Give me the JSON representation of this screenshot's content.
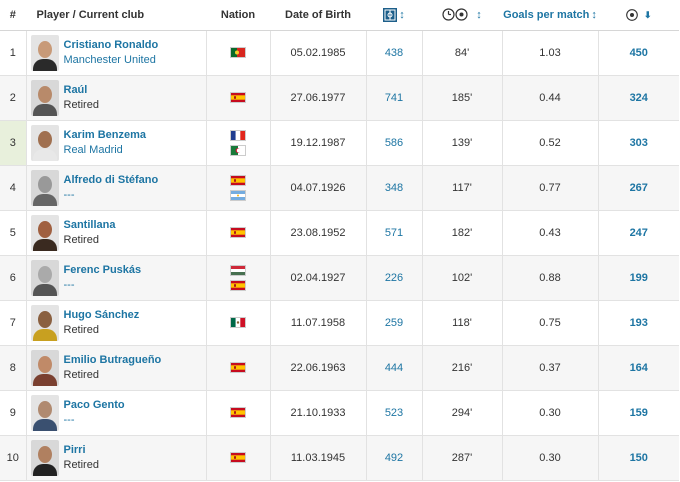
{
  "header": {
    "rank": "#",
    "player": "Player / Current club",
    "nation": "Nation",
    "dob": "Date of Birth",
    "apps_icon": "appearances-icon",
    "minutes_icon": "minutes-per-goal-icon",
    "gpm": "Goals per match",
    "goals_icon": "goals-icon",
    "sort_arrow": "↕",
    "sort_down": "⬇"
  },
  "rows": [
    {
      "rank": "1",
      "name": "Cristiano Ronaldo",
      "club": "Manchester United",
      "club_link": true,
      "flags": [
        "portugal"
      ],
      "dob": "05.02.1985",
      "apps": "438",
      "mpg": "84'",
      "gpm": "1.03",
      "goals": "450",
      "skin": "#c89a78",
      "kit": "#2a2a2a"
    },
    {
      "rank": "2",
      "name": "Raúl",
      "club": "Retired",
      "club_link": false,
      "flags": [
        "spain"
      ],
      "dob": "27.06.1977",
      "apps": "741",
      "mpg": "185'",
      "gpm": "0.44",
      "goals": "324",
      "skin": "#b88a6a",
      "kit": "#555"
    },
    {
      "rank": "3",
      "name": "Karim Benzema",
      "club": "Real Madrid",
      "club_link": true,
      "flags": [
        "france",
        "algeria"
      ],
      "dob": "19.12.1987",
      "apps": "586",
      "mpg": "139'",
      "gpm": "0.52",
      "goals": "303",
      "skin": "#a07050",
      "kit": "#e8e8e8"
    },
    {
      "rank": "4",
      "name": "Alfredo di Stéfano",
      "club": "---",
      "club_link": true,
      "flags": [
        "spain",
        "argentina"
      ],
      "dob": "04.07.1926",
      "apps": "348",
      "mpg": "117'",
      "gpm": "0.77",
      "goals": "267",
      "skin": "#999",
      "kit": "#666"
    },
    {
      "rank": "5",
      "name": "Santillana",
      "club": "Retired",
      "club_link": false,
      "flags": [
        "spain"
      ],
      "dob": "23.08.1952",
      "apps": "571",
      "mpg": "182'",
      "gpm": "0.43",
      "goals": "247",
      "skin": "#a06040",
      "kit": "#3a2a20"
    },
    {
      "rank": "6",
      "name": "Ferenc Puskás",
      "club": "---",
      "club_link": true,
      "flags": [
        "hungary",
        "spain"
      ],
      "dob": "02.04.1927",
      "apps": "226",
      "mpg": "102'",
      "gpm": "0.88",
      "goals": "199",
      "skin": "#aaa",
      "kit": "#555"
    },
    {
      "rank": "7",
      "name": "Hugo Sánchez",
      "club": "Retired",
      "club_link": false,
      "flags": [
        "mexico"
      ],
      "dob": "11.07.1958",
      "apps": "259",
      "mpg": "118'",
      "gpm": "0.75",
      "goals": "193",
      "skin": "#8a6040",
      "kit": "#c8a020"
    },
    {
      "rank": "8",
      "name": "Emilio Butragueño",
      "club": "Retired",
      "club_link": false,
      "flags": [
        "spain"
      ],
      "dob": "22.06.1963",
      "apps": "444",
      "mpg": "216'",
      "gpm": "0.37",
      "goals": "164",
      "skin": "#c08a68",
      "kit": "#7a4030"
    },
    {
      "rank": "9",
      "name": "Paco Gento",
      "club": "---",
      "club_link": true,
      "flags": [
        "spain"
      ],
      "dob": "21.10.1933",
      "apps": "523",
      "mpg": "294'",
      "gpm": "0.30",
      "goals": "159",
      "skin": "#b08a70",
      "kit": "#3a5070"
    },
    {
      "rank": "10",
      "name": "Pirri",
      "club": "Retired",
      "club_link": false,
      "flags": [
        "spain"
      ],
      "dob": "11.03.1945",
      "apps": "492",
      "mpg": "287'",
      "gpm": "0.30",
      "goals": "150",
      "skin": "#b08060",
      "kit": "#222"
    }
  ],
  "colors": {
    "link": "#1d75a3",
    "highlight": "#e8f0dc"
  }
}
